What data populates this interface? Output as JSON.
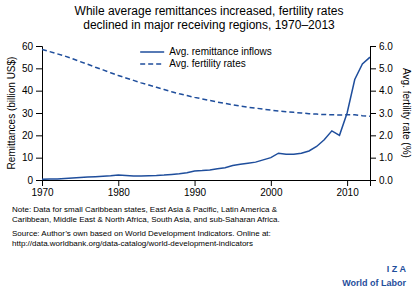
{
  "chart_data": {
    "type": "line",
    "title": "While average remittances increased, fertility rates\ndeclined in major receiving regions, 1970–2013",
    "x": [
      1970,
      1971,
      1972,
      1973,
      1974,
      1975,
      1976,
      1977,
      1978,
      1979,
      1980,
      1981,
      1982,
      1983,
      1984,
      1985,
      1986,
      1987,
      1988,
      1989,
      1990,
      1991,
      1992,
      1993,
      1994,
      1995,
      1996,
      1997,
      1998,
      1999,
      2000,
      2001,
      2002,
      2003,
      2004,
      2005,
      2006,
      2007,
      2008,
      2009,
      2010,
      2011,
      2012,
      2013
    ],
    "series": [
      {
        "name": "Avg. remittance inflows",
        "color": "#1f4e9c",
        "line_style": "solid",
        "values": [
          0.3,
          0.4,
          0.5,
          0.7,
          0.9,
          1.1,
          1.3,
          1.5,
          1.7,
          1.9,
          2.2,
          2.0,
          1.8,
          1.8,
          1.9,
          2.0,
          2.2,
          2.5,
          2.8,
          3.2,
          4.0,
          4.2,
          4.5,
          5.0,
          5.5,
          6.5,
          7.0,
          7.5,
          8.0,
          9.0,
          10.0,
          12.0,
          11.5,
          11.5,
          12.0,
          13.0,
          15.0,
          18.0,
          22.0,
          20.0,
          30.0,
          45.0,
          52.0,
          55.0
        ]
      },
      {
        "name": "Avg. fertility rates",
        "color": "#1f4e9c",
        "line_style": "dashed",
        "axis": "y2",
        "values": [
          5.85,
          5.75,
          5.65,
          5.55,
          5.43,
          5.3,
          5.18,
          5.05,
          4.93,
          4.8,
          4.68,
          4.57,
          4.46,
          4.35,
          4.25,
          4.15,
          4.05,
          3.95,
          3.86,
          3.78,
          3.7,
          3.63,
          3.56,
          3.49,
          3.43,
          3.37,
          3.31,
          3.26,
          3.22,
          3.17,
          3.13,
          3.09,
          3.06,
          3.03,
          3.0,
          2.97,
          2.95,
          2.93,
          2.92,
          2.91,
          2.92,
          2.92,
          2.88,
          2.85
        ]
      }
    ],
    "xlim": [
      1970,
      2013
    ],
    "xticks": [
      1970,
      1980,
      1990,
      2000,
      2010
    ],
    "ylim": [
      0,
      60
    ],
    "yticks": [
      0,
      10,
      20,
      30,
      40,
      50,
      60
    ],
    "y2lim": [
      0,
      6
    ],
    "y2ticks": [
      {
        "value": 0,
        "label": "0.0"
      },
      {
        "value": 1,
        "label": "1.0"
      },
      {
        "value": 2,
        "label": "2.0"
      },
      {
        "value": 3,
        "label": "3.0"
      },
      {
        "value": 4,
        "label": "4.0"
      },
      {
        "value": 5,
        "label": "5.0"
      },
      {
        "value": 6,
        "label": "6.0"
      }
    ],
    "y_label": "Remittances (billion US$)",
    "y2_label": "Avg. fertility rate (%)",
    "legend": "top",
    "grid": false,
    "annotations": [
      "Note: Data for small Caribbean states, East Asia & Pacific, Latin America &\nCaribbean, Middle East & North Africa, South Asia, and sub-Saharan Africa.",
      "Source: Author’s own based on World Development Indicators. Online at:\nhttp://data.worldbank.org/data-catalog/world-development-indicators",
      "I  Z  A",
      "World of Labor"
    ]
  }
}
